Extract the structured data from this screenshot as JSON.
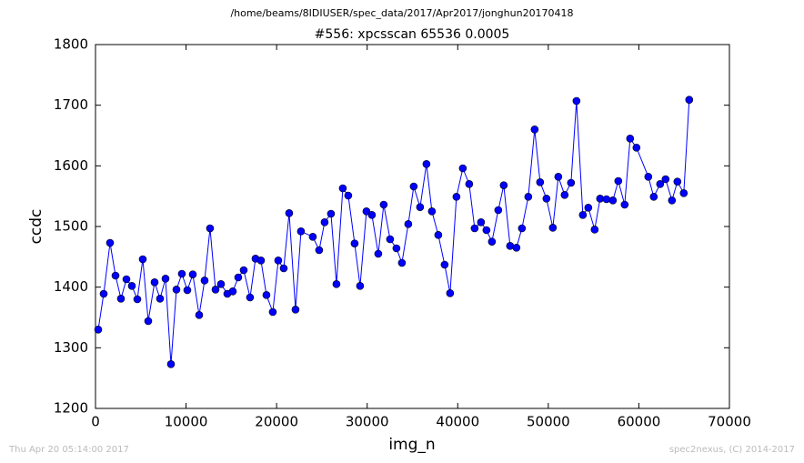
{
  "chart_data": {
    "type": "line",
    "suptitle": "/home/beams/8IDIUSER/spec_data/2017/Apr2017/jonghun20170418",
    "title": "#556: xpcsscan 65536 0.0005",
    "xlabel": "img_n",
    "ylabel": "ccdc",
    "footer_left": "Thu Apr 20 05:14:00 2017",
    "footer_right": "spec2nexus, (C) 2014-2017",
    "color": "#0000ff",
    "marker": "o",
    "grid": false,
    "xlim": [
      0,
      70000
    ],
    "xticks": [
      0,
      10000,
      20000,
      30000,
      40000,
      50000,
      60000,
      70000
    ],
    "ylim": [
      1200,
      1800
    ],
    "yticks": [
      1200,
      1300,
      1400,
      1500,
      1600,
      1700,
      1800
    ],
    "x": [
      301,
      904,
      1606,
      2209,
      2811,
      3414,
      4016,
      4618,
      5221,
      5823,
      6526,
      7128,
      7731,
      8333,
      8936,
      9538,
      10140,
      10743,
      11446,
      12048,
      12650,
      13253,
      13855,
      14558,
      15160,
      15763,
      16365,
      17068,
      17670,
      18273,
      18875,
      19578,
      20180,
      20783,
      21385,
      22088,
      22690,
      23996,
      24698,
      25301,
      26004,
      26606,
      27309,
      27911,
      28614,
      29216,
      29919,
      30522,
      31224,
      31827,
      32530,
      33232,
      33835,
      34538,
      35140,
      35843,
      36546,
      37148,
      37851,
      38554,
      39156,
      39859,
      40562,
      41264,
      41867,
      42570,
      43172,
      43774,
      44477,
      45080,
      45782,
      46485,
      47088,
      47791,
      48493,
      49096,
      49798,
      50501,
      51104,
      51806,
      52509,
      53112,
      53815,
      54417,
      55120,
      55722,
      56425,
      57128,
      57730,
      58433,
      59035,
      59738,
      61043,
      61646,
      62349,
      62951,
      63654,
      64256,
      64959,
      65561
    ],
    "values": [
      1330,
      1389,
      1473,
      1419,
      1381,
      1413,
      1402,
      1380,
      1446,
      1344,
      1408,
      1381,
      1414,
      1273,
      1396,
      1422,
      1395,
      1421,
      1354,
      1411,
      1497,
      1396,
      1405,
      1389,
      1393,
      1416,
      1428,
      1383,
      1447,
      1444,
      1387,
      1359,
      1444,
      1431,
      1522,
      1363,
      1492,
      1483,
      1461,
      1507,
      1521,
      1405,
      1563,
      1551,
      1472,
      1402,
      1525,
      1519,
      1455,
      1536,
      1479,
      1464,
      1440,
      1504,
      1566,
      1532,
      1603,
      1525,
      1486,
      1437,
      1390,
      1549,
      1596,
      1570,
      1497,
      1507,
      1494,
      1475,
      1527,
      1568,
      1468,
      1465,
      1497,
      1549,
      1660,
      1573,
      1546,
      1498,
      1582,
      1552,
      1572,
      1707,
      1519,
      1531,
      1495,
      1546,
      1545,
      1543,
      1575,
      1536,
      1645,
      1630,
      1582,
      1549,
      1570,
      1578,
      1543,
      1574,
      1555,
      1709
    ]
  }
}
